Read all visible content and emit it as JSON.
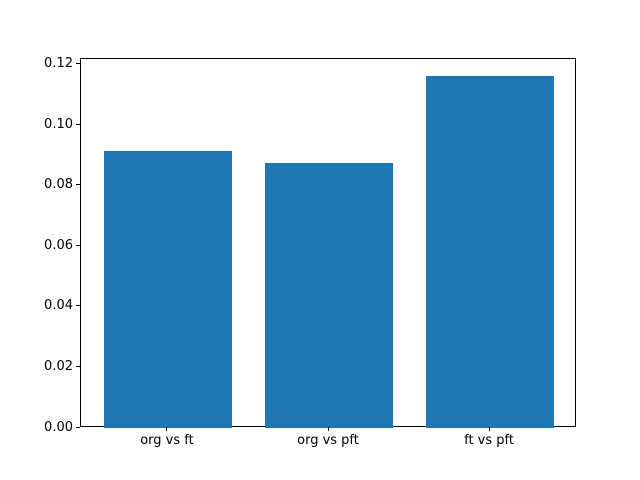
{
  "chart_data": {
    "type": "bar",
    "categories": [
      "org vs ft",
      "org vs pft",
      "ft vs pft"
    ],
    "values": [
      0.0915,
      0.0877,
      0.1162
    ],
    "title": "",
    "xlabel": "",
    "ylabel": "",
    "ylim": [
      0,
      0.1219
    ],
    "yticks": [
      0,
      0.02,
      0.04,
      0.06,
      0.08,
      0.1,
      0.12
    ],
    "ytick_decimals": 2,
    "bar_width_fraction": 0.8,
    "bar_color": "#1f77b4",
    "spine_color": "#000000",
    "text_color": "#000000",
    "background_color": "#ffffff",
    "grid": false,
    "legend": null
  }
}
